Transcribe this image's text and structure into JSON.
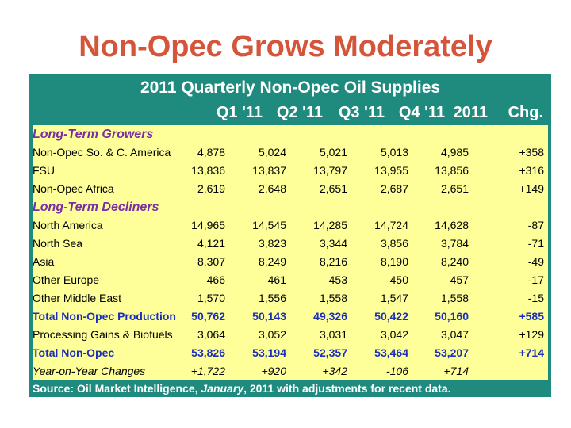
{
  "slide": {
    "title": "Non-Opec Grows Moderately"
  },
  "table": {
    "title": "2011 Quarterly Non-Opec Oil Supplies",
    "columns": [
      "Q1 '11",
      "Q2 '11",
      "Q3 '11",
      "Q4 '11",
      "2011",
      "Chg."
    ],
    "rows": [
      {
        "type": "section",
        "label": "Long-Term Growers",
        "values": []
      },
      {
        "type": "data",
        "label": "Non-Opec So. & C. America",
        "values": [
          "4,878",
          "5,024",
          "5,021",
          "5,013",
          "4,985",
          "+358"
        ]
      },
      {
        "type": "data",
        "label": "FSU",
        "values": [
          "13,836",
          "13,837",
          "13,797",
          "13,955",
          "13,856",
          "+316"
        ]
      },
      {
        "type": "data",
        "label": "Non-Opec Africa",
        "values": [
          "2,619",
          "2,648",
          "2,651",
          "2,687",
          "2,651",
          "+149"
        ]
      },
      {
        "type": "section",
        "label": "Long-Term Decliners",
        "values": []
      },
      {
        "type": "data",
        "label": "North America",
        "values": [
          "14,965",
          "14,545",
          "14,285",
          "14,724",
          "14,628",
          "-87"
        ]
      },
      {
        "type": "data",
        "label": "North Sea",
        "values": [
          "4,121",
          "3,823",
          "3,344",
          "3,856",
          "3,784",
          "-71"
        ]
      },
      {
        "type": "data",
        "label": "Asia",
        "values": [
          "8,307",
          "8,249",
          "8,216",
          "8,190",
          "8,240",
          "-49"
        ]
      },
      {
        "type": "data",
        "label": "Other Europe",
        "values": [
          "466",
          "461",
          "453",
          "450",
          "457",
          "-17"
        ]
      },
      {
        "type": "data",
        "label": "Other Middle East",
        "values": [
          "1,570",
          "1,556",
          "1,558",
          "1,547",
          "1,558",
          "-15"
        ]
      },
      {
        "type": "total",
        "label": "Total Non-Opec Production",
        "values": [
          "50,762",
          "50,143",
          "49,326",
          "50,422",
          "50,160",
          "+585"
        ]
      },
      {
        "type": "data",
        "label": "Processing Gains & Biofuels",
        "values": [
          "3,064",
          "3,052",
          "3,031",
          "3,042",
          "3,047",
          "+129"
        ]
      },
      {
        "type": "total",
        "label": "Total Non-Opec",
        "values": [
          "53,826",
          "53,194",
          "52,357",
          "53,464",
          "53,207",
          "+714"
        ]
      },
      {
        "type": "yoy",
        "label": "Year-on-Year Changes",
        "values": [
          "+1,722",
          "+920",
          "+342",
          "-106",
          "+714",
          ""
        ]
      }
    ],
    "source_prefix": "Source:  Oil Market Intelligence, ",
    "source_month": "January",
    "source_suffix": ", 2011 with adjustments for recent data."
  },
  "colors": {
    "title": "#d5553a",
    "band": "#1f8a7e",
    "panel": "#ffff99",
    "section": "#7a2fa3",
    "total": "#1a2fbd"
  }
}
